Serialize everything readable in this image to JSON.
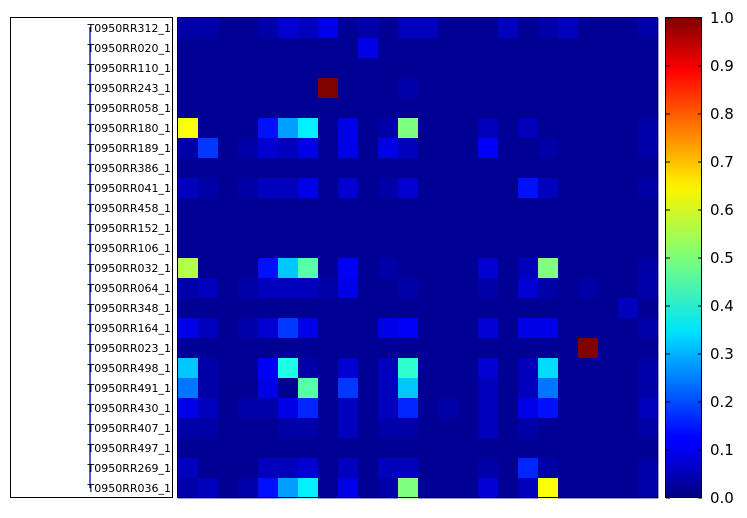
{
  "chart_data": {
    "type": "heatmap",
    "title": "",
    "xlabel": "",
    "ylabel": "",
    "colormap": "jet",
    "value_range": [
      0.0,
      1.0
    ],
    "rows": [
      "T0950RR312_1",
      "T0950RR020_1",
      "T0950RR110_1",
      "T0950RR243_1",
      "T0950RR058_1",
      "T0950RR180_1",
      "T0950RR189_1",
      "T0950RR386_1",
      "T0950RR041_1",
      "T0950RR458_1",
      "T0950RR152_1",
      "T0950RR106_1",
      "T0950RR032_1",
      "T0950RR064_1",
      "T0950RR348_1",
      "T0950RR164_1",
      "T0950RR023_1",
      "T0950RR498_1",
      "T0950RR491_1",
      "T0950RR430_1",
      "T0950RR407_1",
      "T0950RR497_1",
      "T0950RR269_1",
      "T0950RR036_1"
    ],
    "n_columns": 24,
    "values": [
      [
        0.04,
        0.04,
        0.02,
        0.02,
        0.04,
        0.08,
        0.06,
        0.1,
        0.02,
        0.04,
        0.02,
        0.06,
        0.06,
        0.02,
        0.02,
        0.02,
        0.06,
        0.02,
        0.04,
        0.06,
        0.02,
        0.02,
        0.02,
        0.04
      ],
      [
        0.02,
        0.02,
        0.02,
        0.02,
        0.02,
        0.02,
        0.02,
        0.02,
        0.02,
        0.1,
        0.02,
        0.02,
        0.02,
        0.02,
        0.02,
        0.02,
        0.02,
        0.02,
        0.02,
        0.02,
        0.02,
        0.02,
        0.02,
        0.02
      ],
      [
        0.02,
        0.02,
        0.02,
        0.02,
        0.02,
        0.02,
        0.02,
        0.02,
        0.02,
        0.02,
        0.02,
        0.02,
        0.02,
        0.02,
        0.02,
        0.02,
        0.02,
        0.02,
        0.02,
        0.02,
        0.02,
        0.02,
        0.02,
        0.02
      ],
      [
        0.02,
        0.02,
        0.02,
        0.02,
        0.02,
        0.02,
        0.02,
        1.0,
        0.02,
        0.02,
        0.02,
        0.04,
        0.02,
        0.02,
        0.02,
        0.02,
        0.02,
        0.02,
        0.02,
        0.02,
        0.02,
        0.02,
        0.02,
        0.02
      ],
      [
        0.02,
        0.02,
        0.02,
        0.02,
        0.02,
        0.02,
        0.02,
        0.02,
        0.02,
        0.02,
        0.02,
        0.02,
        0.02,
        0.02,
        0.02,
        0.02,
        0.02,
        0.02,
        0.02,
        0.02,
        0.02,
        0.02,
        0.02,
        0.02
      ],
      [
        0.62,
        0.02,
        0.02,
        0.02,
        0.14,
        0.28,
        0.36,
        0.02,
        0.1,
        0.02,
        0.04,
        0.5,
        0.02,
        0.02,
        0.02,
        0.06,
        0.02,
        0.06,
        0.02,
        0.02,
        0.02,
        0.02,
        0.02,
        0.04
      ],
      [
        0.04,
        0.18,
        0.02,
        0.04,
        0.08,
        0.06,
        0.1,
        0.02,
        0.1,
        0.02,
        0.1,
        0.06,
        0.02,
        0.02,
        0.02,
        0.12,
        0.02,
        0.02,
        0.04,
        0.02,
        0.02,
        0.02,
        0.02,
        0.04
      ],
      [
        0.02,
        0.02,
        0.02,
        0.02,
        0.02,
        0.02,
        0.02,
        0.02,
        0.02,
        0.02,
        0.02,
        0.02,
        0.02,
        0.02,
        0.02,
        0.02,
        0.02,
        0.02,
        0.02,
        0.02,
        0.02,
        0.02,
        0.02,
        0.02
      ],
      [
        0.06,
        0.04,
        0.02,
        0.04,
        0.06,
        0.06,
        0.1,
        0.02,
        0.08,
        0.02,
        0.04,
        0.08,
        0.02,
        0.02,
        0.02,
        0.02,
        0.02,
        0.14,
        0.06,
        0.02,
        0.02,
        0.02,
        0.02,
        0.04
      ],
      [
        0.02,
        0.02,
        0.02,
        0.02,
        0.02,
        0.02,
        0.02,
        0.02,
        0.02,
        0.02,
        0.02,
        0.02,
        0.02,
        0.02,
        0.02,
        0.02,
        0.02,
        0.02,
        0.02,
        0.02,
        0.02,
        0.02,
        0.02,
        0.02
      ],
      [
        0.02,
        0.02,
        0.02,
        0.02,
        0.02,
        0.02,
        0.02,
        0.02,
        0.02,
        0.02,
        0.02,
        0.02,
        0.02,
        0.02,
        0.02,
        0.02,
        0.02,
        0.02,
        0.02,
        0.02,
        0.02,
        0.02,
        0.02,
        0.02
      ],
      [
        0.02,
        0.02,
        0.02,
        0.02,
        0.02,
        0.02,
        0.02,
        0.02,
        0.02,
        0.02,
        0.02,
        0.02,
        0.02,
        0.02,
        0.02,
        0.02,
        0.02,
        0.02,
        0.02,
        0.02,
        0.02,
        0.02,
        0.02,
        0.02
      ],
      [
        0.55,
        0.02,
        0.02,
        0.02,
        0.14,
        0.32,
        0.46,
        0.02,
        0.12,
        0.02,
        0.04,
        0.02,
        0.02,
        0.02,
        0.02,
        0.08,
        0.02,
        0.06,
        0.5,
        0.02,
        0.02,
        0.02,
        0.02,
        0.04
      ],
      [
        0.04,
        0.06,
        0.02,
        0.04,
        0.06,
        0.06,
        0.06,
        0.04,
        0.1,
        0.02,
        0.02,
        0.04,
        0.02,
        0.02,
        0.02,
        0.04,
        0.02,
        0.08,
        0.04,
        0.02,
        0.04,
        0.02,
        0.02,
        0.04
      ],
      [
        0.02,
        0.02,
        0.02,
        0.02,
        0.02,
        0.02,
        0.02,
        0.02,
        0.02,
        0.02,
        0.02,
        0.02,
        0.02,
        0.02,
        0.02,
        0.02,
        0.02,
        0.02,
        0.02,
        0.02,
        0.02,
        0.02,
        0.06,
        0.02
      ],
      [
        0.1,
        0.06,
        0.02,
        0.04,
        0.08,
        0.18,
        0.1,
        0.02,
        0.02,
        0.02,
        0.1,
        0.12,
        0.02,
        0.02,
        0.02,
        0.08,
        0.02,
        0.1,
        0.1,
        0.02,
        0.02,
        0.02,
        0.02,
        0.04
      ],
      [
        0.02,
        0.02,
        0.02,
        0.02,
        0.02,
        0.02,
        0.02,
        0.02,
        0.02,
        0.02,
        0.02,
        0.02,
        0.02,
        0.02,
        0.02,
        0.02,
        0.02,
        0.02,
        0.02,
        0.02,
        1.0,
        0.02,
        0.02,
        0.02
      ],
      [
        0.32,
        0.04,
        0.02,
        0.02,
        0.12,
        0.4,
        0.04,
        0.02,
        0.08,
        0.02,
        0.06,
        0.42,
        0.02,
        0.02,
        0.02,
        0.08,
        0.02,
        0.06,
        0.34,
        0.02,
        0.02,
        0.02,
        0.02,
        0.04
      ],
      [
        0.24,
        0.04,
        0.02,
        0.02,
        0.1,
        0.02,
        0.46,
        0.02,
        0.18,
        0.02,
        0.06,
        0.32,
        0.02,
        0.02,
        0.02,
        0.06,
        0.02,
        0.06,
        0.24,
        0.02,
        0.02,
        0.02,
        0.02,
        0.04
      ],
      [
        0.1,
        0.06,
        0.02,
        0.04,
        0.04,
        0.1,
        0.16,
        0.02,
        0.06,
        0.02,
        0.06,
        0.16,
        0.02,
        0.04,
        0.02,
        0.06,
        0.02,
        0.1,
        0.14,
        0.02,
        0.02,
        0.02,
        0.02,
        0.06
      ],
      [
        0.04,
        0.04,
        0.02,
        0.02,
        0.02,
        0.04,
        0.04,
        0.02,
        0.06,
        0.02,
        0.04,
        0.04,
        0.02,
        0.02,
        0.02,
        0.06,
        0.02,
        0.04,
        0.02,
        0.02,
        0.02,
        0.02,
        0.02,
        0.04
      ],
      [
        0.02,
        0.02,
        0.02,
        0.02,
        0.02,
        0.02,
        0.02,
        0.02,
        0.02,
        0.02,
        0.02,
        0.02,
        0.02,
        0.02,
        0.02,
        0.02,
        0.02,
        0.02,
        0.02,
        0.02,
        0.02,
        0.02,
        0.02,
        0.02
      ],
      [
        0.06,
        0.02,
        0.02,
        0.02,
        0.06,
        0.06,
        0.08,
        0.02,
        0.06,
        0.02,
        0.06,
        0.06,
        0.02,
        0.02,
        0.02,
        0.04,
        0.02,
        0.16,
        0.04,
        0.02,
        0.02,
        0.02,
        0.02,
        0.04
      ],
      [
        0.04,
        0.06,
        0.02,
        0.04,
        0.14,
        0.28,
        0.36,
        0.02,
        0.1,
        0.02,
        0.04,
        0.5,
        0.02,
        0.02,
        0.02,
        0.08,
        0.02,
        0.06,
        0.62,
        0.02,
        0.02,
        0.02,
        0.02,
        0.04
      ]
    ],
    "colorbar": {
      "ticks": [
        "0.0",
        "0.1",
        "0.2",
        "0.3",
        "0.4",
        "0.5",
        "0.6",
        "0.7",
        "0.8",
        "0.9",
        "1.0"
      ]
    }
  }
}
